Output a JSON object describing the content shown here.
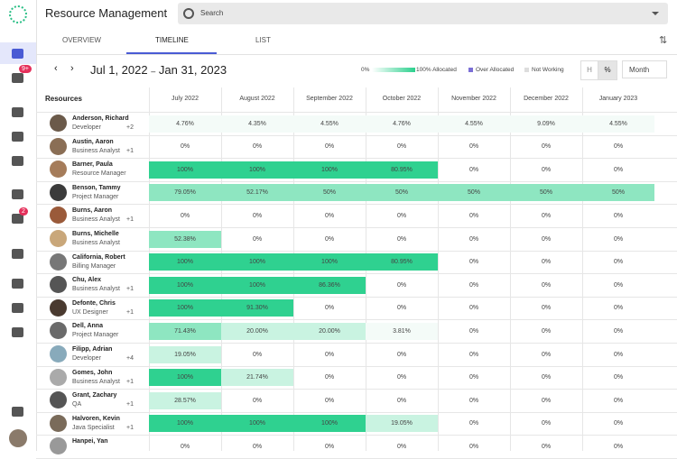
{
  "header": {
    "title": "Resource Management",
    "search_placeholder": "Search"
  },
  "sidebar": {
    "badges": [
      "9+",
      "2"
    ]
  },
  "tabs": [
    "OVERVIEW",
    "TIMELINE",
    "LIST"
  ],
  "date_range": {
    "start": "Jul 1, 2022",
    "separator": "–",
    "end": "Jan 31, 2023"
  },
  "legend": {
    "scale_start": "0%",
    "allocated": "100% Allocated",
    "over_allocated": "Over Allocated",
    "not_working": "Not Working"
  },
  "toggles": {
    "hours": "H",
    "percent": "%",
    "period": "Month"
  },
  "table": {
    "resources_header": "Resources",
    "months": [
      "July 2022",
      "August 2022",
      "September 2022",
      "October 2022",
      "November 2022",
      "December 2022",
      "January 2023"
    ],
    "rows": [
      {
        "name": "Anderson, Richard",
        "role": "Developer",
        "extra": "+2",
        "cells": [
          "4.76%",
          "4.35%",
          "4.55%",
          "4.76%",
          "4.55%",
          "9.09%",
          "4.55%"
        ]
      },
      {
        "name": "Austin, Aaron",
        "role": "Business Analyst",
        "extra": "+1",
        "cells": [
          "0%",
          "0%",
          "0%",
          "0%",
          "0%",
          "0%",
          "0%"
        ]
      },
      {
        "name": "Barner, Paula",
        "role": "Resource Manager",
        "cells": [
          "100%",
          "100%",
          "100%",
          "80.95%",
          "0%",
          "0%",
          "0%"
        ]
      },
      {
        "name": "Benson, Tammy",
        "role": "Project Manager",
        "cells": [
          "79.05%",
          "52.17%",
          "50%",
          "50%",
          "50%",
          "50%",
          "50%"
        ]
      },
      {
        "name": "Burns, Aaron",
        "role": "Business Analyst",
        "extra": "+1",
        "cells": [
          "0%",
          "0%",
          "0%",
          "0%",
          "0%",
          "0%",
          "0%"
        ]
      },
      {
        "name": "Burns, Michelle",
        "role": "Business Analyst",
        "cells": [
          "52.38%",
          "0%",
          "0%",
          "0%",
          "0%",
          "0%",
          "0%"
        ]
      },
      {
        "name": "California, Robert",
        "role": "Billing Manager",
        "cells": [
          "100%",
          "100%",
          "100%",
          "80.95%",
          "0%",
          "0%",
          "0%"
        ]
      },
      {
        "name": "Chu, Alex",
        "role": "Business Analyst",
        "extra": "+1",
        "cells": [
          "100%",
          "100%",
          "86.36%",
          "0%",
          "0%",
          "0%",
          "0%"
        ]
      },
      {
        "name": "Defonte, Chris",
        "role": "UX Designer",
        "extra": "+1",
        "cells": [
          "100%",
          "91.30%",
          "0%",
          "0%",
          "0%",
          "0%",
          "0%"
        ]
      },
      {
        "name": "Dell, Anna",
        "role": "Project Manager",
        "cells": [
          "71.43%",
          "20.00%",
          "20.00%",
          "3.81%",
          "0%",
          "0%",
          "0%"
        ]
      },
      {
        "name": "Filipp, Adrian",
        "role": "Developer",
        "extra": "+4",
        "cells": [
          "19.05%",
          "0%",
          "0%",
          "0%",
          "0%",
          "0%",
          "0%"
        ]
      },
      {
        "name": "Gomes, John",
        "role": "Business Analyst",
        "extra": "+1",
        "cells": [
          "100%",
          "21.74%",
          "0%",
          "0%",
          "0%",
          "0%",
          "0%"
        ]
      },
      {
        "name": "Grant, Zachary",
        "role": "QA",
        "extra": "+1",
        "cells": [
          "28.57%",
          "0%",
          "0%",
          "0%",
          "0%",
          "0%",
          "0%"
        ]
      },
      {
        "name": "Halvoren, Kevin",
        "role": "Java Specialist",
        "extra": "+1",
        "cells": [
          "100%",
          "100%",
          "100%",
          "19.05%",
          "0%",
          "0%",
          "0%"
        ]
      },
      {
        "name": "Hanpei, Yan",
        "cells": [
          "0%",
          "0%",
          "0%",
          "0%",
          "0%",
          "0%",
          "0%"
        ]
      }
    ]
  }
}
